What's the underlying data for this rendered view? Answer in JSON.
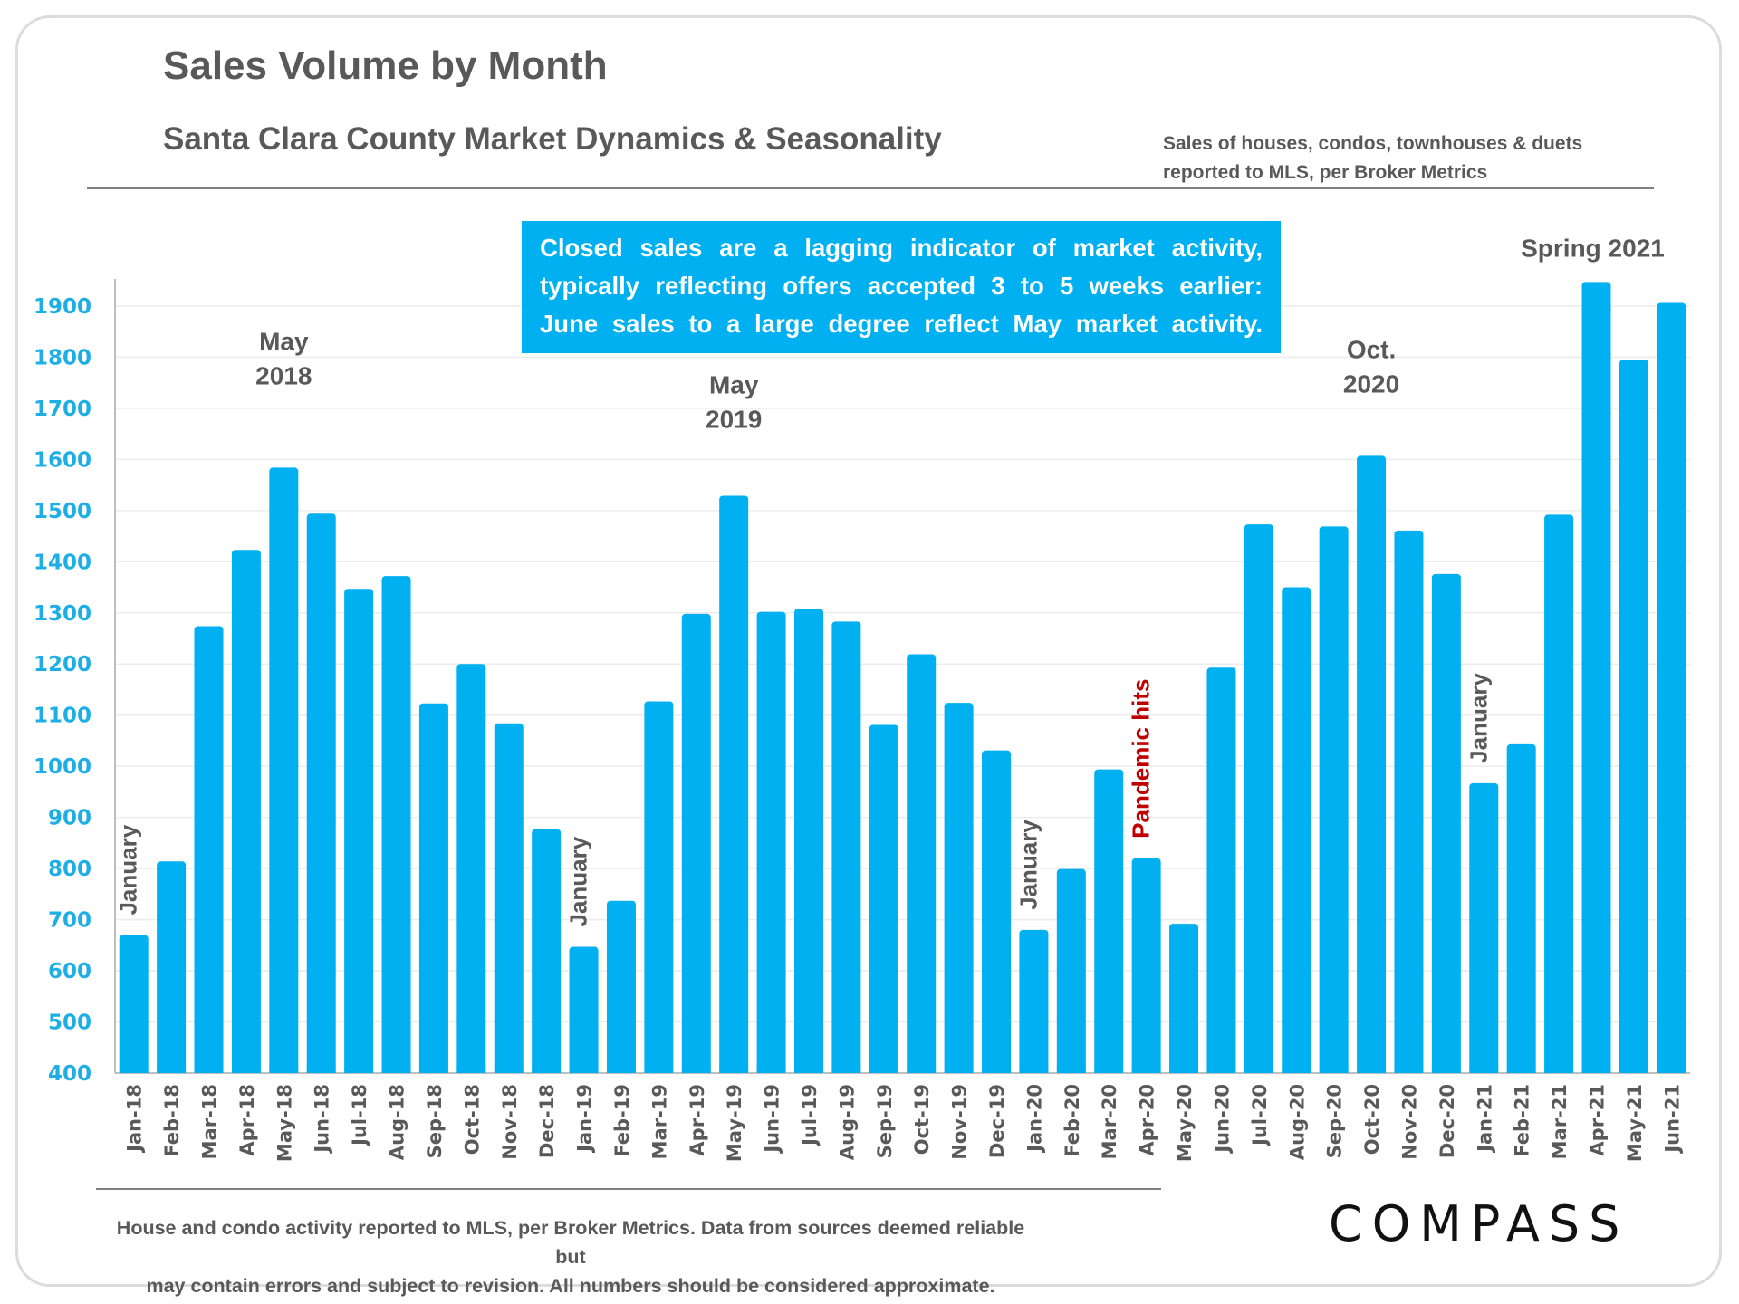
{
  "header": {
    "title": "Sales Volume by Month",
    "subtitle": "Santa Clara County Market Dynamics & Seasonality",
    "source_note_lines": [
      "Sales of houses, condos, townhouses & duets",
      "reported to MLS, per Broker Metrics"
    ]
  },
  "callout": {
    "lines": [
      "Closed sales are a lagging indicator of market activity,",
      "typically reflecting offers accepted 3 to 5 weeks earlier:",
      "June sales to a large degree reflect May market activity."
    ]
  },
  "footer": {
    "lines": [
      "House and condo activity reported to MLS, per Broker Metrics. Data from sources deemed reliable but",
      "may contain errors and subject to revision. All numbers should be considered approximate."
    ],
    "logo_text": "COMPASS"
  },
  "colors": {
    "bar": "#00b0f0",
    "axis_tick_labels": "#1eaee6",
    "text_gray": "#595959",
    "pandemic_red": "#c00000"
  },
  "chart_data": {
    "type": "bar",
    "title": "Sales Volume by Month",
    "subtitle": "Santa Clara County Market Dynamics & Seasonality",
    "xlabel": "",
    "ylabel": "",
    "ylim": [
      400,
      1950
    ],
    "yticks": [
      400,
      500,
      600,
      700,
      800,
      900,
      1000,
      1100,
      1200,
      1300,
      1400,
      1500,
      1600,
      1700,
      1800,
      1900
    ],
    "grid": true,
    "legend": "none",
    "categories": [
      "Jan-18",
      "Feb-18",
      "Mar-18",
      "Apr-18",
      "May-18",
      "Jun-18",
      "Jul-18",
      "Aug-18",
      "Sep-18",
      "Oct-18",
      "Nov-18",
      "Dec-18",
      "Jan-19",
      "Feb-19",
      "Mar-19",
      "Apr-19",
      "May-19",
      "Jun-19",
      "Jul-19",
      "Aug-19",
      "Sep-19",
      "Oct-19",
      "Nov-19",
      "Dec-19",
      "Jan-20",
      "Feb-20",
      "Mar-20",
      "Apr-20",
      "May-20",
      "Jun-20",
      "Jul-20",
      "Aug-20",
      "Sep-20",
      "Oct-20",
      "Nov-20",
      "Dec-20",
      "Jan-21",
      "Feb-21",
      "Mar-21",
      "Apr-21",
      "May-21",
      "Jun-21"
    ],
    "values": [
      670,
      814,
      1274,
      1423,
      1584,
      1494,
      1347,
      1372,
      1123,
      1200,
      1084,
      877,
      647,
      737,
      1127,
      1298,
      1529,
      1302,
      1308,
      1283,
      1081,
      1219,
      1124,
      1031,
      680,
      799,
      994,
      820,
      692,
      1193,
      1473,
      1350,
      1469,
      1607,
      1461,
      1376,
      967,
      1043,
      1492,
      1947,
      1795,
      1906
    ],
    "annotations": [
      {
        "text_lines": [
          "May",
          "2018"
        ],
        "category": "May-18",
        "orientation": "horizontal",
        "color": "gray"
      },
      {
        "text_lines": [
          "May",
          "2019"
        ],
        "category": "May-19",
        "orientation": "horizontal",
        "color": "gray"
      },
      {
        "text_lines": [
          "Oct.",
          "2020"
        ],
        "category": "Oct-20",
        "orientation": "horizontal",
        "color": "gray"
      },
      {
        "text_lines": [
          "Spring 2021"
        ],
        "category": "Apr-21",
        "orientation": "horizontal",
        "color": "gray"
      },
      {
        "text_lines": [
          "January"
        ],
        "category": "Jan-18",
        "orientation": "vertical",
        "color": "gray"
      },
      {
        "text_lines": [
          "January"
        ],
        "category": "Jan-19",
        "orientation": "vertical",
        "color": "gray"
      },
      {
        "text_lines": [
          "January"
        ],
        "category": "Jan-20",
        "orientation": "vertical",
        "color": "gray"
      },
      {
        "text_lines": [
          "January"
        ],
        "category": "Jan-21",
        "orientation": "vertical",
        "color": "gray"
      },
      {
        "text_lines": [
          "Pandemic hits"
        ],
        "category": "Apr-20",
        "orientation": "vertical",
        "color": "red"
      }
    ]
  }
}
